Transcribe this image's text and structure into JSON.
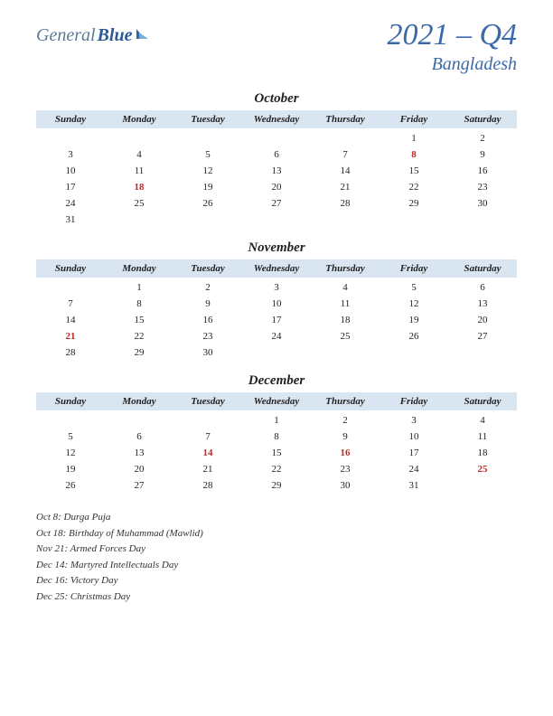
{
  "logo": {
    "part1": "General",
    "part2": "Blue"
  },
  "title": {
    "main": "2021 – Q4",
    "sub": "Bangladesh"
  },
  "day_headers": [
    "Sunday",
    "Monday",
    "Tuesday",
    "Wednesday",
    "Thursday",
    "Friday",
    "Saturday"
  ],
  "months": [
    {
      "name": "October",
      "weeks": [
        [
          "",
          "",
          "",
          "",
          "",
          "1",
          "2"
        ],
        [
          "3",
          "4",
          "5",
          "6",
          "7",
          "8",
          "9"
        ],
        [
          "10",
          "11",
          "12",
          "13",
          "14",
          "15",
          "16"
        ],
        [
          "17",
          "18",
          "19",
          "20",
          "21",
          "22",
          "23"
        ],
        [
          "24",
          "25",
          "26",
          "27",
          "28",
          "29",
          "30"
        ],
        [
          "31",
          "",
          "",
          "",
          "",
          "",
          ""
        ]
      ],
      "holidays": [
        "8",
        "18"
      ]
    },
    {
      "name": "November",
      "weeks": [
        [
          "",
          "1",
          "2",
          "3",
          "4",
          "5",
          "6"
        ],
        [
          "7",
          "8",
          "9",
          "10",
          "11",
          "12",
          "13"
        ],
        [
          "14",
          "15",
          "16",
          "17",
          "18",
          "19",
          "20"
        ],
        [
          "21",
          "22",
          "23",
          "24",
          "25",
          "26",
          "27"
        ],
        [
          "28",
          "29",
          "30",
          "",
          "",
          "",
          ""
        ]
      ],
      "holidays": [
        "21"
      ]
    },
    {
      "name": "December",
      "weeks": [
        [
          "",
          "",
          "",
          "1",
          "2",
          "3",
          "4"
        ],
        [
          "5",
          "6",
          "7",
          "8",
          "9",
          "10",
          "11"
        ],
        [
          "12",
          "13",
          "14",
          "15",
          "16",
          "17",
          "18"
        ],
        [
          "19",
          "20",
          "21",
          "22",
          "23",
          "24",
          "25"
        ],
        [
          "26",
          "27",
          "28",
          "29",
          "30",
          "31",
          ""
        ]
      ],
      "holidays": [
        "14",
        "16",
        "25"
      ]
    }
  ],
  "holiday_list": [
    "Oct 8: Durga Puja",
    "Oct 18: Birthday of Muhammad (Mawlid)",
    "Nov 21: Armed Forces Day",
    "Dec 14: Martyred Intellectuals Day",
    "Dec 16: Victory Day",
    "Dec 25: Christmas Day"
  ],
  "colors": {
    "header_bg": "#dae5f2",
    "title_color": "#3a6aaa",
    "holiday_color": "#c62828",
    "text_color": "#222222"
  }
}
